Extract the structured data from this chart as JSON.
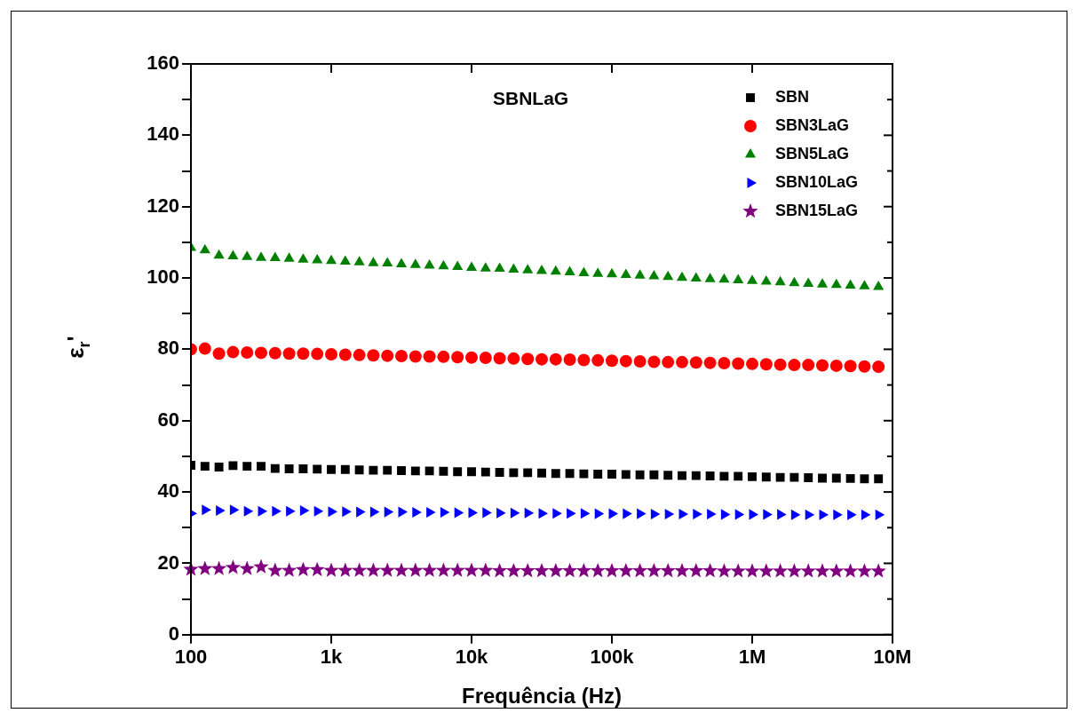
{
  "chart_data": {
    "type": "scatter",
    "xlabel": "Frequência (Hz)",
    "ylabel": "ε$_{r}$'",
    "log": "x",
    "annotations": [
      "SBNLaG"
    ],
    "x": [
      100,
      125.9,
      158.5,
      199.5,
      251.2,
      316.2,
      398.1,
      501.2,
      631,
      794.3,
      1000,
      1259,
      1585,
      1995,
      2512,
      3162,
      3981,
      5012,
      6310,
      7943,
      10000,
      12590,
      15850,
      19950,
      25120,
      31620,
      39810,
      50120,
      63100,
      79430,
      100000,
      125900,
      158500,
      199500,
      251200,
      316200,
      398100,
      501200,
      631000,
      794300,
      1000000,
      1259000,
      1585000,
      1995000,
      2512000,
      3162000,
      3981000,
      5012000,
      6310000,
      7943000
    ],
    "xlim": [
      100,
      10000000
    ],
    "xticks": [
      {
        "value": 100,
        "label": "100"
      },
      {
        "value": 1000,
        "label": "1k"
      },
      {
        "value": 10000,
        "label": "10k"
      },
      {
        "value": 100000,
        "label": "100k"
      },
      {
        "value": 1000000,
        "label": "1M"
      },
      {
        "value": 10000000,
        "label": "10M"
      }
    ],
    "ylim": [
      0,
      160
    ],
    "yticks": [
      0,
      {
        "value": 10,
        "label": null
      },
      20,
      {
        "value": 30,
        "label": null
      },
      40,
      {
        "value": 50,
        "label": null
      },
      60,
      {
        "value": 70,
        "label": null
      },
      80,
      {
        "value": 90,
        "label": null
      },
      100,
      {
        "value": 110,
        "label": null
      },
      120,
      {
        "value": 130,
        "label": null
      },
      140,
      {
        "value": 150,
        "label": null
      },
      160
    ],
    "legend": "top right",
    "grid": false,
    "series": [
      {
        "name": "SBN",
        "color": "#000000",
        "marker": "square",
        "values": [
          47.5,
          47.2,
          47.0,
          47.4,
          47.2,
          47.2,
          46.6,
          46.5,
          46.5,
          46.4,
          46.3,
          46.3,
          46.2,
          46.1,
          46.1,
          46.0,
          45.9,
          45.9,
          45.8,
          45.7,
          45.7,
          45.6,
          45.5,
          45.4,
          45.4,
          45.3,
          45.2,
          45.2,
          45.1,
          45.0,
          45.0,
          44.9,
          44.8,
          44.8,
          44.7,
          44.6,
          44.6,
          44.5,
          44.4,
          44.4,
          44.3,
          44.2,
          44.1,
          44.1,
          44.0,
          43.9,
          43.9,
          43.8,
          43.7,
          43.7
        ]
      },
      {
        "name": "SBN3LaG",
        "color": "#ff0000",
        "marker": "circle",
        "values": [
          80.0,
          80.2,
          78.8,
          79.2,
          79.1,
          79.0,
          78.9,
          78.8,
          78.8,
          78.7,
          78.6,
          78.5,
          78.4,
          78.3,
          78.2,
          78.1,
          78.0,
          78.0,
          77.9,
          77.8,
          77.7,
          77.6,
          77.5,
          77.4,
          77.3,
          77.2,
          77.2,
          77.1,
          77.0,
          76.9,
          76.8,
          76.7,
          76.6,
          76.5,
          76.4,
          76.4,
          76.3,
          76.2,
          76.1,
          76.0,
          75.9,
          75.8,
          75.7,
          75.6,
          75.6,
          75.5,
          75.4,
          75.3,
          75.2,
          75.1
        ]
      },
      {
        "name": "SBN5LaG",
        "color": "#008000",
        "marker": "triangle",
        "values": [
          108.5,
          107.8,
          106.3,
          106.1,
          105.9,
          105.7,
          105.6,
          105.4,
          105.2,
          105.0,
          104.8,
          104.6,
          104.4,
          104.2,
          104.1,
          103.9,
          103.7,
          103.5,
          103.3,
          103.1,
          102.9,
          102.7,
          102.6,
          102.4,
          102.2,
          102.0,
          101.8,
          101.6,
          101.4,
          101.2,
          101.1,
          100.9,
          100.7,
          100.5,
          100.3,
          100.1,
          99.9,
          99.7,
          99.6,
          99.4,
          99.2,
          99.0,
          98.8,
          98.6,
          98.4,
          98.2,
          98.1,
          97.9,
          97.7,
          97.5
        ]
      },
      {
        "name": "SBN10LaG",
        "color": "#0000ff",
        "marker": "triangle-right",
        "values": [
          34.0,
          35.0,
          34.8,
          35.0,
          34.6,
          34.6,
          34.6,
          34.6,
          34.8,
          34.6,
          34.5,
          34.5,
          34.4,
          34.4,
          34.4,
          34.4,
          34.3,
          34.3,
          34.3,
          34.2,
          34.2,
          34.2,
          34.1,
          34.1,
          34.1,
          34.0,
          34.0,
          34.0,
          34.0,
          33.9,
          33.9,
          33.9,
          33.9,
          33.8,
          33.8,
          33.8,
          33.8,
          33.8,
          33.7,
          33.7,
          33.7,
          33.7,
          33.7,
          33.6,
          33.6,
          33.6,
          33.6,
          33.6,
          33.6,
          33.6
        ]
      },
      {
        "name": "SBN15LaG",
        "color": "#800080",
        "marker": "star",
        "values": [
          18.3,
          18.5,
          18.5,
          18.8,
          18.5,
          19.0,
          18.0,
          18.0,
          18.2,
          18.2,
          18.0,
          18.0,
          18.0,
          18.0,
          18.0,
          18.0,
          18.0,
          18.0,
          18.0,
          18.0,
          18.0,
          18.0,
          17.9,
          17.9,
          17.9,
          17.9,
          17.9,
          17.9,
          17.9,
          17.9,
          17.9,
          17.9,
          17.9,
          17.9,
          17.9,
          17.9,
          17.9,
          17.9,
          17.8,
          17.8,
          17.8,
          17.8,
          17.8,
          17.8,
          17.8,
          17.8,
          17.8,
          17.8,
          17.8,
          17.8
        ]
      }
    ]
  }
}
